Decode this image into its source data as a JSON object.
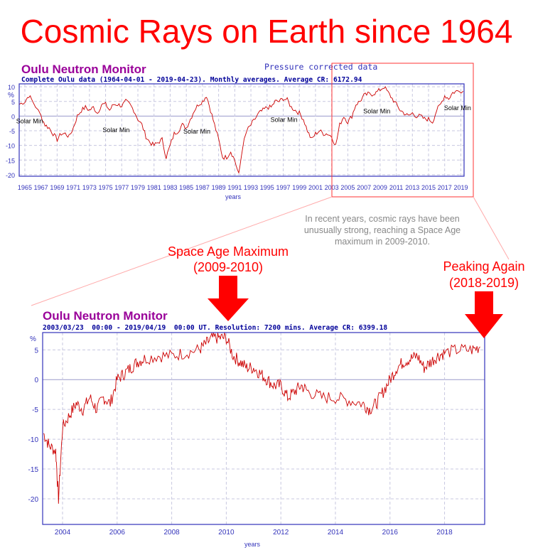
{
  "headline": "Cosmic Rays on Earth since 1964",
  "note": [
    "In recent years, cosmic rays have been",
    "unusually strong, reaching a Space Age",
    "maximum in 2009-2010."
  ],
  "callouts": {
    "maximum": [
      "Space Age Maximum",
      "(2009-2010)"
    ],
    "peaking": [
      "Peaking Again",
      "(2018-2019)"
    ]
  },
  "colors": {
    "accent": "#ff0000",
    "series": "#cc0000",
    "axis": "#3333bb",
    "title": "#990099"
  },
  "chart_data": [
    {
      "type": "line",
      "title": "Oulu Neutron Monitor",
      "subtitle": "Complete Oulu data (1964-04-01 - 2019-04-23). Monthly averages. Average CR: 6172.94",
      "corner_note": "Pressure corrected data",
      "xlabel": "years",
      "ylabel": "%",
      "xlim": [
        1964.3,
        2019.4
      ],
      "ylim": [
        -20.5,
        11
      ],
      "yticks": [
        10,
        5,
        0,
        -5,
        -10,
        -15,
        -20
      ],
      "xticks": [
        1965,
        1967,
        1969,
        1971,
        1973,
        1975,
        1977,
        1979,
        1981,
        1983,
        1985,
        1987,
        1989,
        1991,
        1993,
        1995,
        1997,
        1999,
        2001,
        2003,
        2005,
        2007,
        2009,
        2011,
        2013,
        2015,
        2017,
        2019
      ],
      "grid": true,
      "annotations": [
        {
          "text": "Solar Min",
          "x": 1965.6,
          "y": -2.5
        },
        {
          "text": "Solar Min",
          "x": 1976.3,
          "y": -5.5
        },
        {
          "text": "Solar Min",
          "x": 1986.3,
          "y": -6
        },
        {
          "text": "Solar Min",
          "x": 1997.1,
          "y": -2
        },
        {
          "text": "Solar Min",
          "x": 2008.6,
          "y": 1
        },
        {
          "text": "Solar Min",
          "x": 2018.6,
          "y": 2
        }
      ],
      "highlight_range": [
        2003.3,
        2019.4
      ],
      "x": [
        1964.3,
        1965,
        1965.5,
        1966,
        1967,
        1967.5,
        1968,
        1968.5,
        1969,
        1969.5,
        1970,
        1970.5,
        1971,
        1971.5,
        1972,
        1972.5,
        1973,
        1973.5,
        1974,
        1974.5,
        1975,
        1975.5,
        1976,
        1976.5,
        1977,
        1977.5,
        1978,
        1978.5,
        1979,
        1979.5,
        1980,
        1980.5,
        1981,
        1981.5,
        1982,
        1982.5,
        1983,
        1983.5,
        1984,
        1984.5,
        1985,
        1985.5,
        1986,
        1986.5,
        1987,
        1987.5,
        1988,
        1988.5,
        1989,
        1989.5,
        1990,
        1990.5,
        1991,
        1991.5,
        1992,
        1992.5,
        1993,
        1993.5,
        1994,
        1994.5,
        1995,
        1995.5,
        1996,
        1996.5,
        1997,
        1997.5,
        1998,
        1998.5,
        1999,
        1999.5,
        2000,
        2000.5,
        2001,
        2001.5,
        2002,
        2002.5,
        2003,
        2003.5,
        2004,
        2004.5,
        2005,
        2005.5,
        2006,
        2006.5,
        2007,
        2007.5,
        2008,
        2008.5,
        2009,
        2009.5,
        2010,
        2010.5,
        2011,
        2011.5,
        2012,
        2012.5,
        2013,
        2013.5,
        2014,
        2014.5,
        2015,
        2015.5,
        2016,
        2016.5,
        2017,
        2017.5,
        2018,
        2018.5,
        2019.3
      ],
      "values": [
        4,
        5,
        7,
        5,
        0,
        -3,
        -4,
        -6,
        -8,
        -6,
        -6,
        -7,
        -4,
        0,
        2,
        3,
        2,
        3,
        1,
        4,
        4,
        2,
        4,
        4,
        3.5,
        5,
        4,
        2,
        -1,
        -3,
        -7,
        -9,
        -10,
        -9,
        -8,
        -14,
        -10,
        -6,
        -5,
        -3,
        -4,
        -1,
        2,
        4,
        5,
        7,
        2,
        -3,
        -8,
        -14,
        -14,
        -12,
        -15,
        -20,
        -10,
        -5,
        -3,
        -1,
        1,
        2,
        3,
        3,
        5,
        5,
        6,
        5.5,
        3,
        2,
        1,
        -1,
        -5,
        -8,
        -6,
        -5,
        -6,
        -6,
        -7,
        -10,
        -3,
        0,
        -2,
        0,
        4,
        5,
        7,
        7.5,
        7.5,
        8,
        9,
        10,
        8,
        6,
        4,
        2,
        1,
        0,
        1,
        0,
        0,
        -1,
        -1,
        -2,
        2,
        4,
        7,
        6,
        8,
        8.5,
        8.5
      ]
    },
    {
      "type": "line",
      "title": "Oulu Neutron Monitor",
      "subtitle": "2003/03/23  00:00 - 2019/04/19  00:00 UT. Resolution: 7200 mins. Average CR: 6399.18",
      "xlabel": "years",
      "ylabel": "%",
      "xlim": [
        2003.27,
        2019.47
      ],
      "ylim": [
        -24.3,
        7.9
      ],
      "yticks": [
        5,
        0,
        -5,
        -10,
        -15,
        -20
      ],
      "xticks": [
        2004,
        2006,
        2008,
        2010,
        2012,
        2014,
        2016,
        2018
      ],
      "grid": true,
      "x": [
        2003.3,
        2003.5,
        2003.75,
        2003.85,
        2004,
        2004.25,
        2004.5,
        2004.75,
        2005,
        2005.25,
        2005.5,
        2005.75,
        2006,
        2006.25,
        2006.5,
        2006.75,
        2007,
        2007.5,
        2008,
        2008.5,
        2009,
        2009.25,
        2009.5,
        2009.75,
        2010,
        2010.25,
        2010.5,
        2010.75,
        2011,
        2011.25,
        2011.5,
        2011.75,
        2012,
        2012.25,
        2012.5,
        2012.75,
        2013,
        2013.5,
        2014,
        2014.5,
        2015,
        2015.25,
        2015.5,
        2015.75,
        2016,
        2016.25,
        2016.5,
        2016.75,
        2017,
        2017.25,
        2017.5,
        2017.75,
        2018,
        2018.5,
        2019,
        2019.3
      ],
      "values": [
        -9,
        -11,
        -12,
        -20,
        -8,
        -6,
        -4,
        -5,
        -3,
        -5,
        -3,
        -4,
        0,
        1,
        2,
        3,
        3.5,
        4,
        4,
        4.5,
        5,
        6,
        7,
        7,
        7,
        4,
        3,
        2,
        2,
        1,
        0,
        -1,
        -1,
        -3,
        -2,
        -1,
        -2,
        -3,
        -3,
        -3.5,
        -4,
        -5,
        -4,
        -2,
        0,
        2,
        3,
        3.5,
        4,
        2,
        3,
        4,
        4.5,
        5,
        5,
        5.5
      ]
    }
  ]
}
